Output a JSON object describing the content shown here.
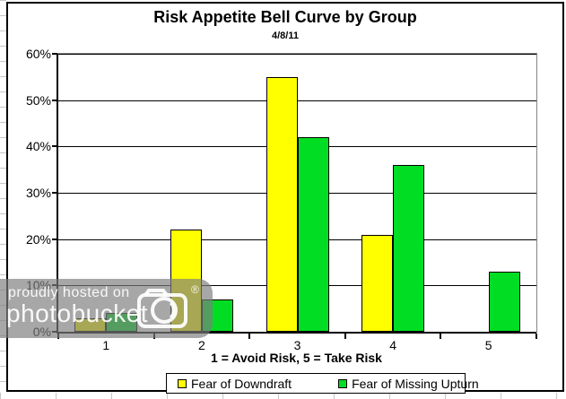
{
  "chart_data": {
    "type": "bar",
    "title": "Risk Appetite Bell Curve by Group",
    "subtitle": "4/8/11",
    "xlabel": "1 = Avoid Risk, 5 = Take Risk",
    "ylabel": "",
    "categories": [
      "1",
      "2",
      "3",
      "4",
      "5"
    ],
    "series": [
      {
        "name": "Fear of Downdraft",
        "color": "#FFFF00",
        "values": [
          3,
          22,
          55,
          21,
          0
        ]
      },
      {
        "name": "Fear of Missing Upturn",
        "color": "#00DD22",
        "values": [
          4,
          7,
          42,
          36,
          13
        ]
      }
    ],
    "ylim": [
      0,
      60
    ],
    "yticklabels": [
      "0%",
      "10%",
      "20%",
      "30%",
      "40%",
      "50%",
      "60%"
    ],
    "grid": true,
    "legend_position": "bottom",
    "bar_border_color": "#000000",
    "gridline_color": "#000000",
    "plot_border_color": "#848484"
  },
  "watermark": {
    "line1": "proudly hosted on",
    "line2": "photobucket",
    "registered": "®"
  }
}
